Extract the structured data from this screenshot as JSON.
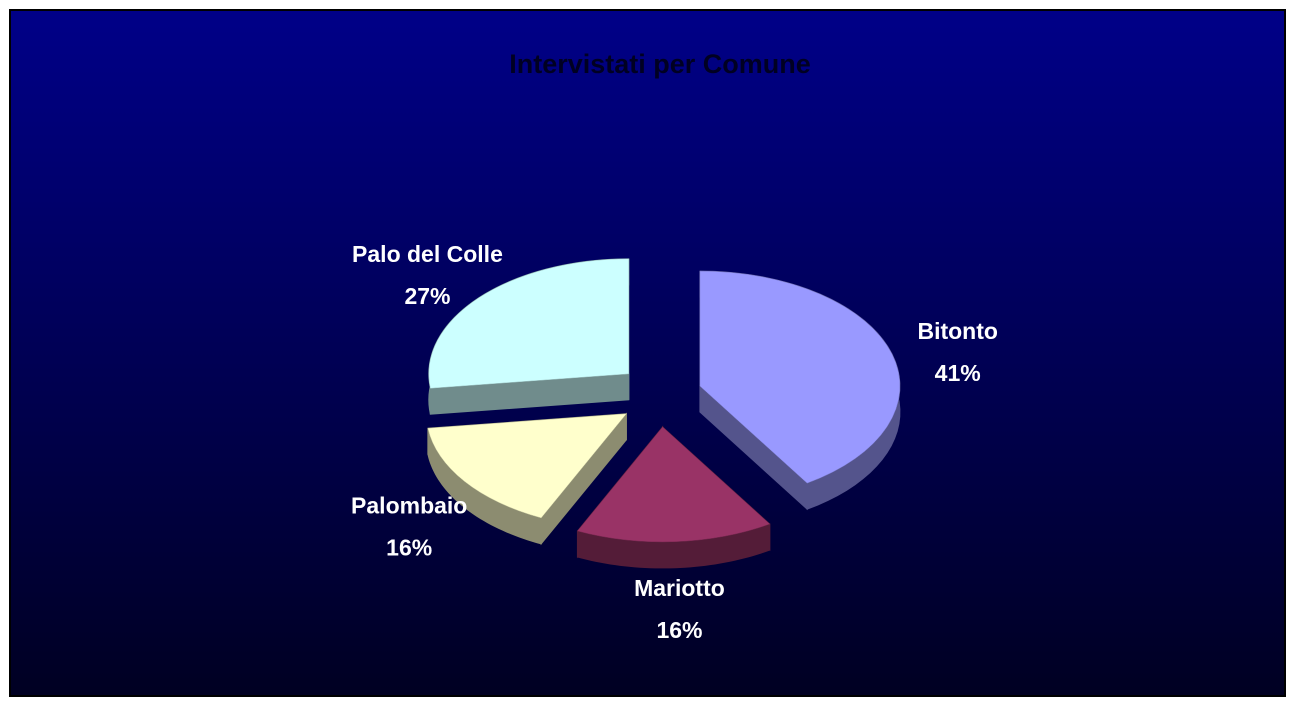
{
  "chart_data": {
    "type": "pie",
    "title": "Intervistati per Comune",
    "categories": [
      "Bitonto",
      "Mariotto",
      "Palombaio",
      "Palo del Colle"
    ],
    "values": [
      41,
      16,
      16,
      27
    ],
    "value_labels": [
      "41%",
      "16%",
      "16%",
      "27%"
    ],
    "colors": [
      "#9999ff",
      "#993366",
      "#ffffcc",
      "#ccffff"
    ]
  }
}
